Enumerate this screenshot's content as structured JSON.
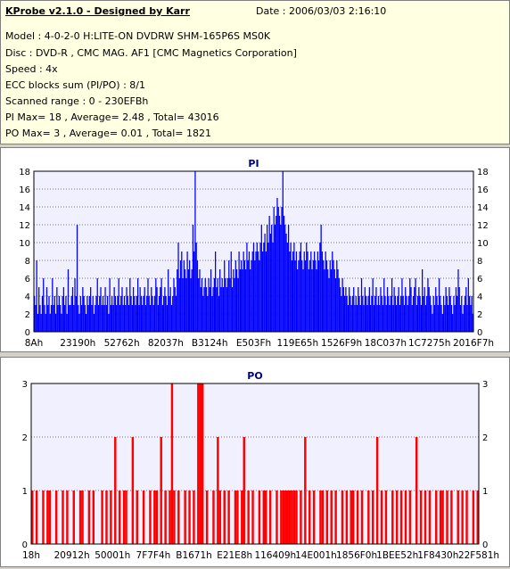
{
  "header": {
    "title": "KProbe v2.1.0 - Designed by Karr",
    "date": "Date : 2006/03/03 2:16:10",
    "lines": [
      "Model : 4-0-2-0 H:LITE-ON DVDRW SHM-165P6S MS0K",
      "Disc : DVD-R , CMC MAG. AF1 [CMC Magnetics Corporation]",
      "Speed : 4x",
      "ECC blocks sum (PI/PO) : 8/1",
      "Scanned range : 0 - 230EFBh",
      "PI Max= 18 , Average= 2.48 , Total= 43016",
      "PO Max= 3 , Average= 0.01 , Total= 1821"
    ]
  },
  "colors": {
    "pi": "#0000ff",
    "po": "#ff0000",
    "background": "#ffffe1",
    "grid": "#000000"
  },
  "chart_data": [
    {
      "type": "bar",
      "title": "PI",
      "ylim": [
        0,
        18
      ],
      "yticks": [
        0,
        2,
        4,
        6,
        8,
        10,
        12,
        14,
        16,
        18
      ],
      "xticks": [
        "8Ah",
        "23190h",
        "52762h",
        "82037h",
        "B3124h",
        "E503Fh",
        "119E65h",
        "1526F9h",
        "18C037h",
        "1C7275h",
        "2016F7h"
      ],
      "x_range": [
        "0",
        "230EFBh"
      ],
      "profile_description": "approximate per-sample PI values (reading left to right)",
      "values": [
        4,
        3,
        8,
        2,
        5,
        3,
        2,
        4,
        6,
        3,
        2,
        5,
        3,
        4,
        2,
        3,
        6,
        3,
        4,
        2,
        5,
        3,
        4,
        3,
        2,
        4,
        5,
        3,
        4,
        2,
        7,
        3,
        3,
        4,
        5,
        3,
        6,
        4,
        12,
        3,
        2,
        4,
        3,
        5,
        4,
        3,
        2,
        4,
        3,
        4,
        5,
        3,
        4,
        2,
        3,
        4,
        6,
        3,
        4,
        5,
        3,
        4,
        3,
        5,
        3,
        4,
        2,
        6,
        3,
        4,
        3,
        5,
        4,
        3,
        4,
        6,
        3,
        4,
        5,
        3,
        4,
        3,
        5,
        4,
        3,
        6,
        4,
        3,
        5,
        4,
        3,
        4,
        6,
        3,
        5,
        4,
        3,
        4,
        5,
        3,
        4,
        6,
        4,
        3,
        5,
        4,
        3,
        4,
        6,
        5,
        3,
        4,
        5,
        6,
        3,
        4,
        5,
        4,
        3,
        7,
        4,
        5,
        3,
        4,
        6,
        5,
        4,
        7,
        10,
        6,
        8,
        9,
        6,
        8,
        7,
        6,
        9,
        7,
        8,
        6,
        7,
        12,
        9,
        18,
        10,
        8,
        6,
        7,
        5,
        6,
        4,
        5,
        6,
        5,
        4,
        6,
        5,
        7,
        4,
        5,
        6,
        9,
        5,
        6,
        4,
        7,
        5,
        6,
        5,
        8,
        6,
        5,
        6,
        8,
        6,
        9,
        5,
        7,
        6,
        8,
        7,
        6,
        9,
        7,
        8,
        7,
        9,
        8,
        7,
        10,
        8,
        9,
        7,
        8,
        9,
        10,
        8,
        9,
        10,
        9,
        8,
        10,
        12,
        9,
        10,
        11,
        9,
        12,
        10,
        13,
        11,
        12,
        10,
        14,
        12,
        13,
        15,
        14,
        13,
        12,
        14,
        18,
        13,
        12,
        11,
        10,
        12,
        9,
        10,
        8,
        9,
        10,
        8,
        9,
        7,
        8,
        9,
        10,
        8,
        7,
        9,
        8,
        10,
        9,
        7,
        8,
        9,
        7,
        8,
        9,
        8,
        7,
        9,
        8,
        10,
        12,
        9,
        8,
        7,
        9,
        8,
        7,
        6,
        8,
        7,
        9,
        8,
        7,
        6,
        8,
        7,
        6,
        5,
        4,
        6,
        5,
        4,
        5,
        4,
        3,
        5,
        4,
        3,
        4,
        5,
        3,
        4,
        3,
        5,
        4,
        3,
        6,
        4,
        3,
        5,
        4,
        3,
        4,
        5,
        3,
        4,
        6,
        3,
        4,
        5,
        3,
        4,
        3,
        5,
        4,
        3,
        6,
        4,
        3,
        5,
        4,
        3,
        4,
        6,
        3,
        5,
        4,
        3,
        4,
        5,
        3,
        4,
        6,
        4,
        3,
        5,
        4,
        3,
        4,
        6,
        5,
        3,
        4,
        5,
        6,
        3,
        4,
        5,
        4,
        3,
        7,
        4,
        5,
        3,
        4,
        6,
        5,
        4,
        3,
        2,
        4,
        3,
        5,
        4,
        3,
        6,
        4,
        3,
        2,
        4,
        3,
        5,
        4,
        3,
        5,
        4,
        3,
        2,
        4,
        3,
        5,
        4,
        7,
        5,
        3,
        4,
        2,
        3,
        4,
        5,
        3,
        6,
        4,
        3,
        4,
        2
      ]
    },
    {
      "type": "bar",
      "title": "PO",
      "ylim": [
        0,
        3
      ],
      "yticks": [
        0,
        1,
        2,
        3
      ],
      "xticks": [
        "18h",
        "20912h",
        "50001h",
        "7F7F4h",
        "B1671h",
        "E21E8h",
        "116409h",
        "14E001h",
        "1856F0h",
        "1BEE52h",
        "1F8430h",
        "22F581h"
      ],
      "x_range": [
        "0",
        "230EFBh"
      ],
      "profile_description": "approximate per-sample PO values (reading left to right)",
      "values": [
        1,
        0,
        1,
        0,
        0,
        1,
        0,
        1,
        1,
        0,
        0,
        1,
        0,
        0,
        1,
        0,
        1,
        0,
        0,
        1,
        0,
        0,
        1,
        1,
        0,
        0,
        1,
        0,
        1,
        0,
        0,
        0,
        1,
        0,
        1,
        0,
        1,
        0,
        2,
        0,
        1,
        0,
        1,
        1,
        0,
        0,
        2,
        0,
        1,
        0,
        0,
        1,
        0,
        0,
        1,
        0,
        1,
        1,
        0,
        2,
        0,
        1,
        0,
        1,
        3,
        1,
        0,
        1,
        0,
        0,
        1,
        0,
        1,
        0,
        1,
        0,
        3,
        3,
        3,
        0,
        1,
        0,
        0,
        1,
        0,
        2,
        1,
        0,
        1,
        0,
        1,
        0,
        0,
        1,
        1,
        0,
        1,
        2,
        0,
        1,
        0,
        1,
        0,
        0,
        1,
        0,
        1,
        1,
        0,
        1,
        0,
        0,
        1,
        0,
        1,
        1,
        1,
        1,
        1,
        1,
        1,
        1,
        0,
        1,
        0,
        2,
        0,
        1,
        0,
        1,
        0,
        0,
        1,
        1,
        0,
        1,
        0,
        1,
        0,
        1,
        0,
        0,
        1,
        0,
        1,
        0,
        1,
        1,
        0,
        1,
        0,
        1,
        0,
        0,
        1,
        0,
        1,
        0,
        2,
        0,
        1,
        0,
        1,
        0,
        0,
        1,
        0,
        1,
        0,
        1,
        0,
        1,
        0,
        1,
        0,
        0,
        2,
        0,
        1,
        0,
        1,
        0,
        1,
        0,
        0,
        1,
        0,
        1,
        1,
        0,
        1,
        0,
        1,
        0,
        0,
        1,
        0,
        1,
        0,
        1,
        0,
        0,
        1,
        0,
        1
      ]
    }
  ]
}
